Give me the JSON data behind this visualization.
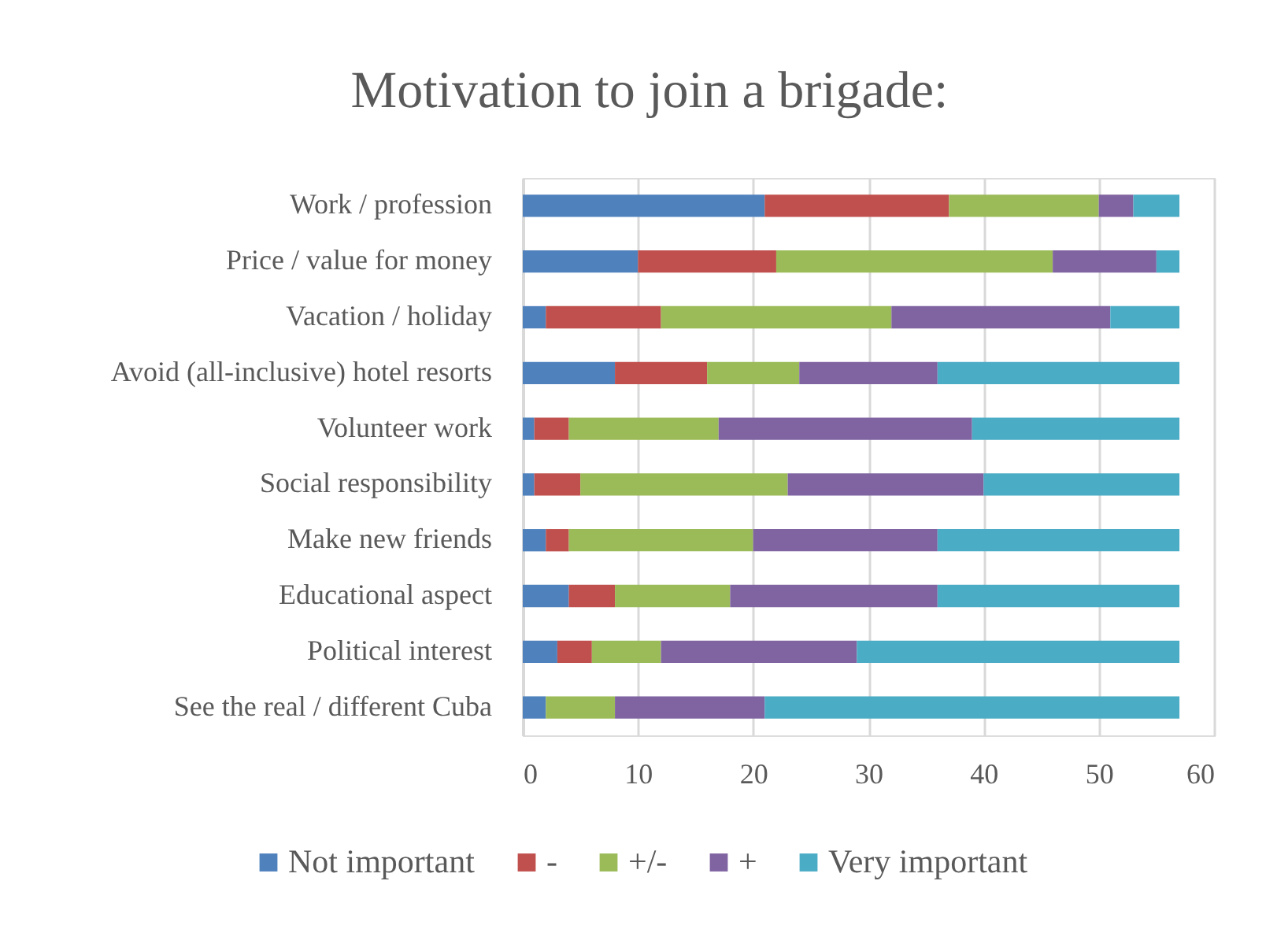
{
  "chart_data": {
    "type": "bar",
    "orientation": "horizontal",
    "stacked": true,
    "title": "Motivation to join a brigade:",
    "categories": [
      "Work / profession",
      "Price / value for money",
      "Vacation / holiday",
      "Avoid (all-inclusive) hotel resorts",
      "Volunteer work",
      "Social responsibility",
      "Make new friends",
      "Educational aspect",
      "Political interest",
      "See the real / different Cuba"
    ],
    "series": [
      {
        "name": "Not important",
        "color": "#4f81bd",
        "values": [
          21,
          10,
          2,
          8,
          1,
          1,
          2,
          4,
          3,
          2
        ]
      },
      {
        "name": "-",
        "color": "#c0504d",
        "values": [
          16,
          12,
          10,
          8,
          3,
          4,
          2,
          4,
          3,
          0
        ]
      },
      {
        "name": "+/-",
        "color": "#9bbb59",
        "values": [
          13,
          24,
          20,
          8,
          13,
          18,
          16,
          10,
          6,
          6
        ]
      },
      {
        "name": "+",
        "color": "#8064a2",
        "values": [
          3,
          9,
          19,
          12,
          22,
          17,
          16,
          18,
          17,
          13
        ]
      },
      {
        "name": "Very important",
        "color": "#4bacc6",
        "values": [
          4,
          2,
          6,
          21,
          18,
          17,
          21,
          21,
          28,
          36
        ]
      }
    ],
    "xlim": [
      0,
      60
    ],
    "xticks": [
      0,
      10,
      20,
      30,
      40,
      50,
      60
    ],
    "grid": "x",
    "legend": "bottom"
  }
}
